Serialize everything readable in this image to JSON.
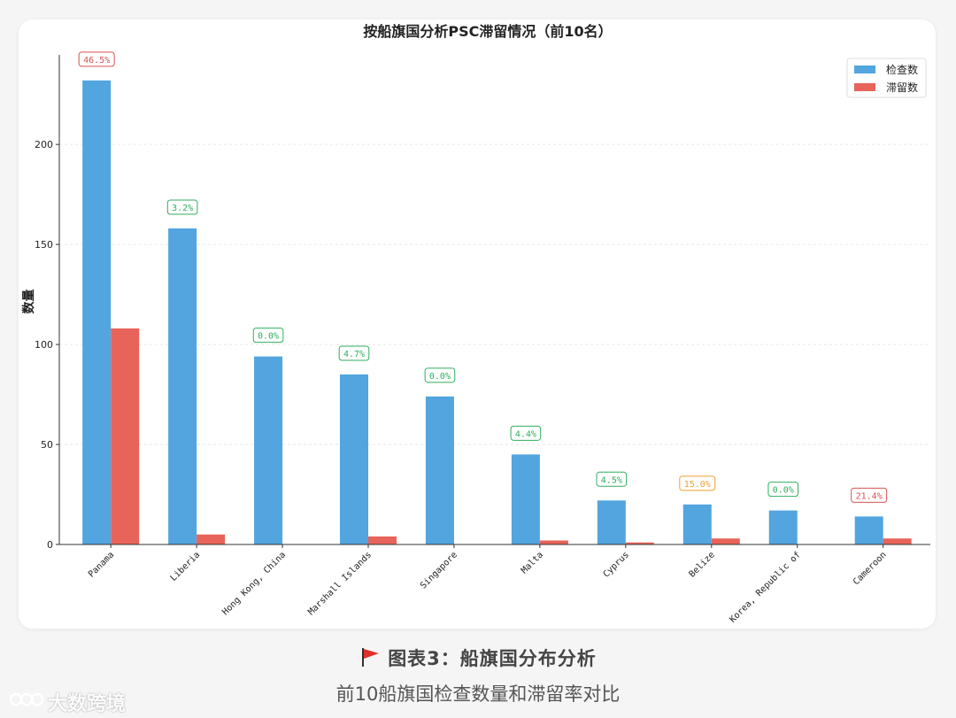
{
  "chart_data": {
    "type": "bar",
    "title": "按船旗国分析PSC滞留情况（前10名）",
    "ylabel": "数量",
    "xlabel": "",
    "ylim": [
      0,
      243
    ],
    "yticks": [
      0,
      50,
      100,
      150,
      200
    ],
    "grid": "horizontal-dashed",
    "legend_position": "top-right",
    "categories": [
      "Panama",
      "Liberia",
      "Hong Kong, China",
      "Marshall Islands",
      "Singapore",
      "Malta",
      "Cyprus",
      "Belize",
      "Korea, Republic of",
      "Cameroon"
    ],
    "series": [
      {
        "name": "检查数",
        "color": "#52a5de",
        "values": [
          232,
          158,
          94,
          85,
          74,
          45,
          22,
          20,
          17,
          14
        ]
      },
      {
        "name": "滞留数",
        "color": "#e8635a",
        "values": [
          108,
          5,
          0,
          4,
          0,
          2,
          1,
          3,
          0,
          3
        ]
      }
    ],
    "annotations": [
      {
        "label": "46.5%",
        "color": "#d9534f"
      },
      {
        "label": "3.2%",
        "color": "#2fae5e"
      },
      {
        "label": "0.0%",
        "color": "#2fae5e"
      },
      {
        "label": "4.7%",
        "color": "#2fae5e"
      },
      {
        "label": "0.0%",
        "color": "#2fae5e"
      },
      {
        "label": "4.4%",
        "color": "#2fae5e"
      },
      {
        "label": "4.5%",
        "color": "#2fae5e"
      },
      {
        "label": "15.0%",
        "color": "#f0a030"
      },
      {
        "label": "0.0%",
        "color": "#2fae5e"
      },
      {
        "label": "21.4%",
        "color": "#d9534f"
      }
    ]
  },
  "caption": {
    "title": "图表3：船旗国分布分析",
    "subtitle": "前10船旗国检查数量和滞留率对比",
    "flag_icon": "red-flag-icon"
  },
  "watermark": {
    "text": "大数跨境"
  }
}
